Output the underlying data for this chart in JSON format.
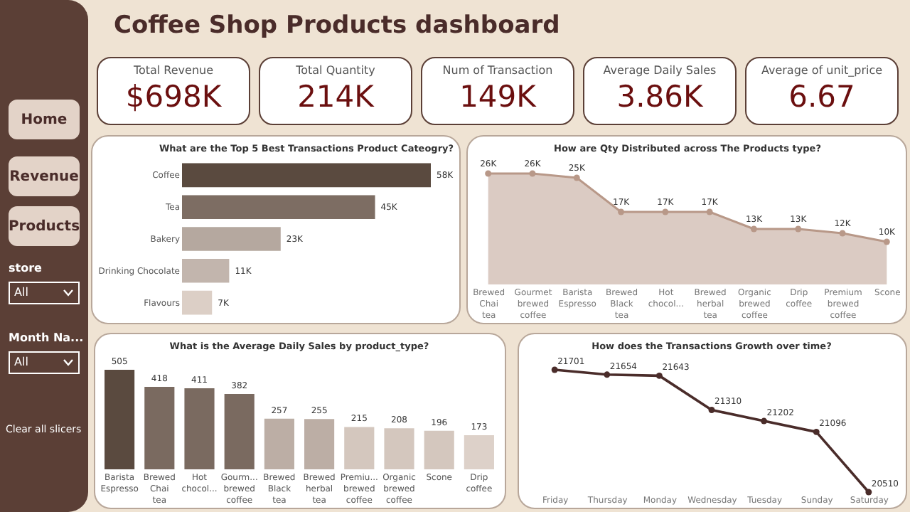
{
  "chart_data": [
    {
      "type": "other",
      "annotations": [
        "Home",
        "Revenue",
        "Products",
        "store",
        "All",
        "Month Na...",
        "All",
        "Clear all slicers"
      ]
    },
    {
      "type": "other",
      "title": "Coffee Shop Products dashboard",
      "annotations": [
        "Total Revenue",
        "$698K",
        "Total Quantity",
        "214K",
        "Num of Transaction",
        "149K",
        "Average Daily Sales",
        "3.86K",
        "Average of unit_price",
        "6.67"
      ]
    },
    {
      "type": "bar",
      "orientation": "horizontal",
      "title": "What are the Top 5 Best Transactions Product Cateogry?",
      "categories": [
        "Coffee",
        "Tea",
        "Bakery",
        "Drinking Chocolate",
        "Flavours"
      ],
      "values": [
        58000,
        45000,
        23000,
        11000,
        7000
      ],
      "value_labels": [
        "58K",
        "45K",
        "23K",
        "11K",
        "7K"
      ],
      "colors": [
        "#5a4a3f",
        "#7d6d63",
        "#b5a89f",
        "#c2b5ad",
        "#dccfc6"
      ]
    },
    {
      "type": "area",
      "title": "How are Qty Distributed across The Products type?",
      "categories": [
        "Brewed Chai tea",
        "Gourmet brewed coffee",
        "Barista Espresso",
        "Brewed Black tea",
        "Hot chocol...",
        "Brewed herbal tea",
        "Organic brewed coffee",
        "Drip coffee",
        "Premium brewed coffee",
        "Scone"
      ],
      "values": [
        26000,
        26000,
        25000,
        17000,
        17000,
        17000,
        13000,
        13000,
        12000,
        10000
      ],
      "value_labels": [
        "26K",
        "26K",
        "25K",
        "17K",
        "17K",
        "17K",
        "13K",
        "13K",
        "12K",
        "10K"
      ],
      "color": "#b89888",
      "marker": "circle"
    },
    {
      "type": "bar",
      "title": "What is the Average Daily Sales by product_type?",
      "categories": [
        "Barista Espresso",
        "Brewed Chai tea",
        "Hot chocol...",
        "Gourm... brewed coffee",
        "Brewed Black tea",
        "Brewed herbal tea",
        "Premiu... brewed coffee",
        "Organic brewed coffee",
        "Scone",
        "Drip coffee"
      ],
      "values": [
        505,
        418,
        411,
        382,
        257,
        255,
        215,
        208,
        196,
        173
      ],
      "data_labels": true,
      "colors": [
        "#5a4a3f",
        "#7a6a60",
        "#7a6a60",
        "#7a6a60",
        "#bcaea5",
        "#bcaea5",
        "#d4c7be",
        "#d4c7be",
        "#d4c7be",
        "#ddd1c9"
      ]
    },
    {
      "type": "line",
      "title": "How does the Transactions Growth over time?",
      "categories": [
        "Friday",
        "Thursday",
        "Monday",
        "Wednesday",
        "Tuesday",
        "Sunday",
        "Saturday"
      ],
      "values": [
        21701,
        21654,
        21643,
        21310,
        21202,
        21096,
        20510
      ],
      "data_labels": true,
      "color": "#4a2c2a",
      "marker": "circle"
    }
  ]
}
